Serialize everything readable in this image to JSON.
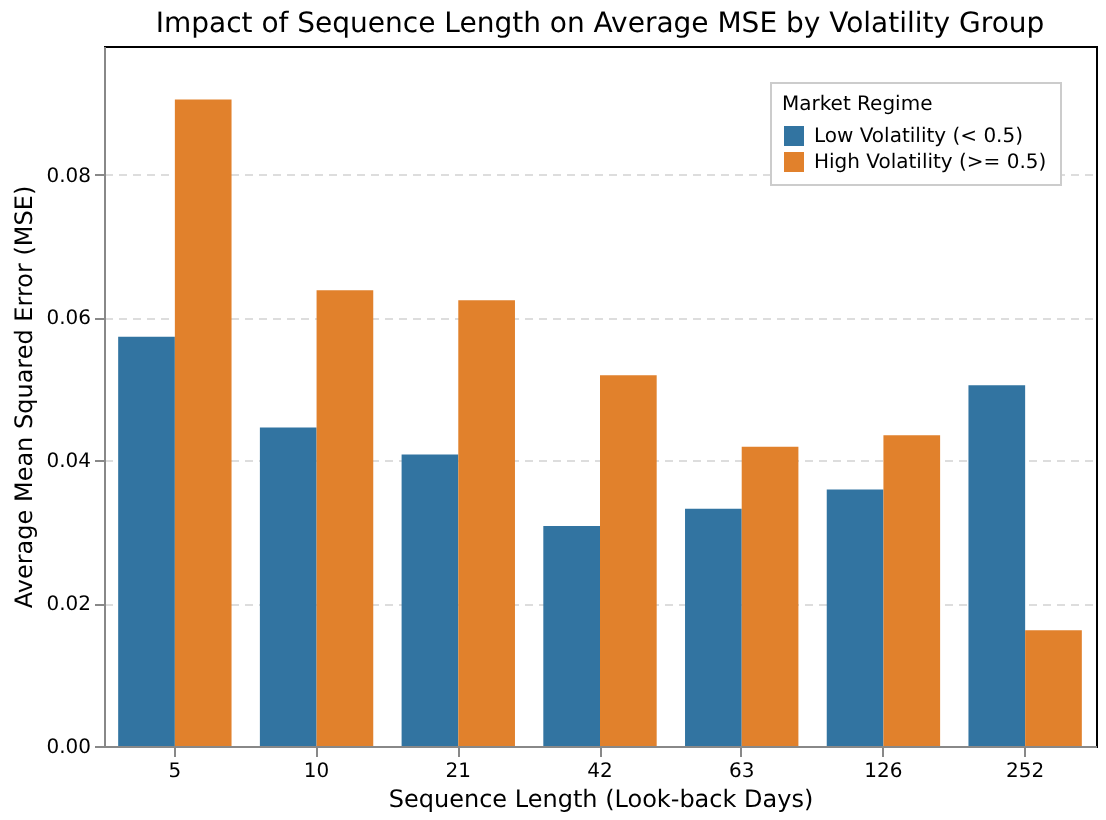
{
  "chart_data": {
    "type": "bar",
    "title": "Impact of Sequence Length on Average MSE by Volatility Group",
    "xlabel": "Sequence Length (Look-back Days)",
    "ylabel": "Average Mean Squared Error (MSE)",
    "legend_title": "Market Regime",
    "categories": [
      "5",
      "10",
      "21",
      "42",
      "63",
      "126",
      "252"
    ],
    "series": [
      {
        "name": "Low Volatility (< 0.5)",
        "color": "#3274a1",
        "values": [
          0.0573,
          0.0446,
          0.0408,
          0.0308,
          0.0332,
          0.0359,
          0.0505
        ]
      },
      {
        "name": "High Volatility (>= 0.5)",
        "color": "#e1812c",
        "values": [
          0.0905,
          0.0638,
          0.0624,
          0.0519,
          0.0419,
          0.0435,
          0.0162
        ]
      }
    ],
    "ylim": [
      0,
      0.098
    ],
    "yticks": [
      {
        "value": 0,
        "label": "0.00"
      },
      {
        "value": 0.02,
        "label": "0.02"
      },
      {
        "value": 0.04,
        "label": "0.04"
      },
      {
        "value": 0.06,
        "label": "0.06"
      },
      {
        "value": 0.08,
        "label": "0.08"
      }
    ],
    "grid": "y",
    "legend": "top right"
  }
}
